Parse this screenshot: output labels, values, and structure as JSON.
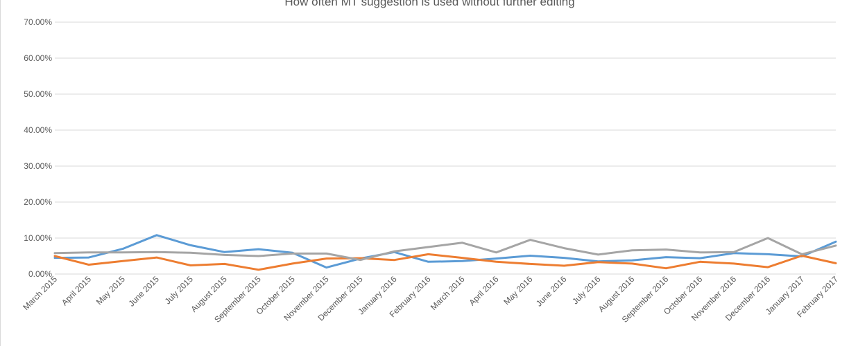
{
  "chart_data": {
    "type": "line",
    "title": "How often MT suggestion is used without further editing",
    "xlabel": "",
    "ylabel": "",
    "ylim": [
      0,
      70
    ],
    "y_ticks": [
      "0.00%",
      "10.00%",
      "20.00%",
      "30.00%",
      "40.00%",
      "50.00%",
      "60.00%",
      "70.00%"
    ],
    "grid": true,
    "legend": "none",
    "categories": [
      "March 2015",
      "April 2015",
      "May 2015",
      "June 2015",
      "July 2015",
      "August 2015",
      "September 2015",
      "October 2015",
      "November 2015",
      "December 2015",
      "January 2016",
      "February 2016",
      "March 2016",
      "April 2016",
      "May 2016",
      "June 2016",
      "July 2016",
      "August 2016",
      "September 2016",
      "October 2016",
      "November 2016",
      "December 2016",
      "January 2017",
      "February 2017"
    ],
    "series": [
      {
        "color": "#5b9bd5",
        "values": [
          4.5,
          4.6,
          7.0,
          10.8,
          8.0,
          6.1,
          6.9,
          5.9,
          1.8,
          4.3,
          6.1,
          3.4,
          3.6,
          4.3,
          5.1,
          4.5,
          3.5,
          3.8,
          4.7,
          4.4,
          5.8,
          5.5,
          4.9,
          9.0
        ]
      },
      {
        "color": "#ed7d31",
        "values": [
          5.0,
          2.6,
          3.6,
          4.6,
          2.4,
          2.8,
          1.2,
          2.9,
          4.3,
          4.4,
          3.9,
          5.5,
          4.5,
          3.4,
          2.8,
          2.3,
          3.3,
          2.9,
          1.6,
          3.4,
          2.9,
          1.9,
          5.1,
          3.0
        ]
      },
      {
        "color": "#a5a5a5",
        "values": [
          5.8,
          6.0,
          6.0,
          6.1,
          5.9,
          5.3,
          5.0,
          5.7,
          5.7,
          3.9,
          6.3,
          7.5,
          8.7,
          6.0,
          9.5,
          7.2,
          5.4,
          6.6,
          6.8,
          6.0,
          6.1,
          10.0,
          5.5,
          7.9
        ]
      }
    ]
  }
}
